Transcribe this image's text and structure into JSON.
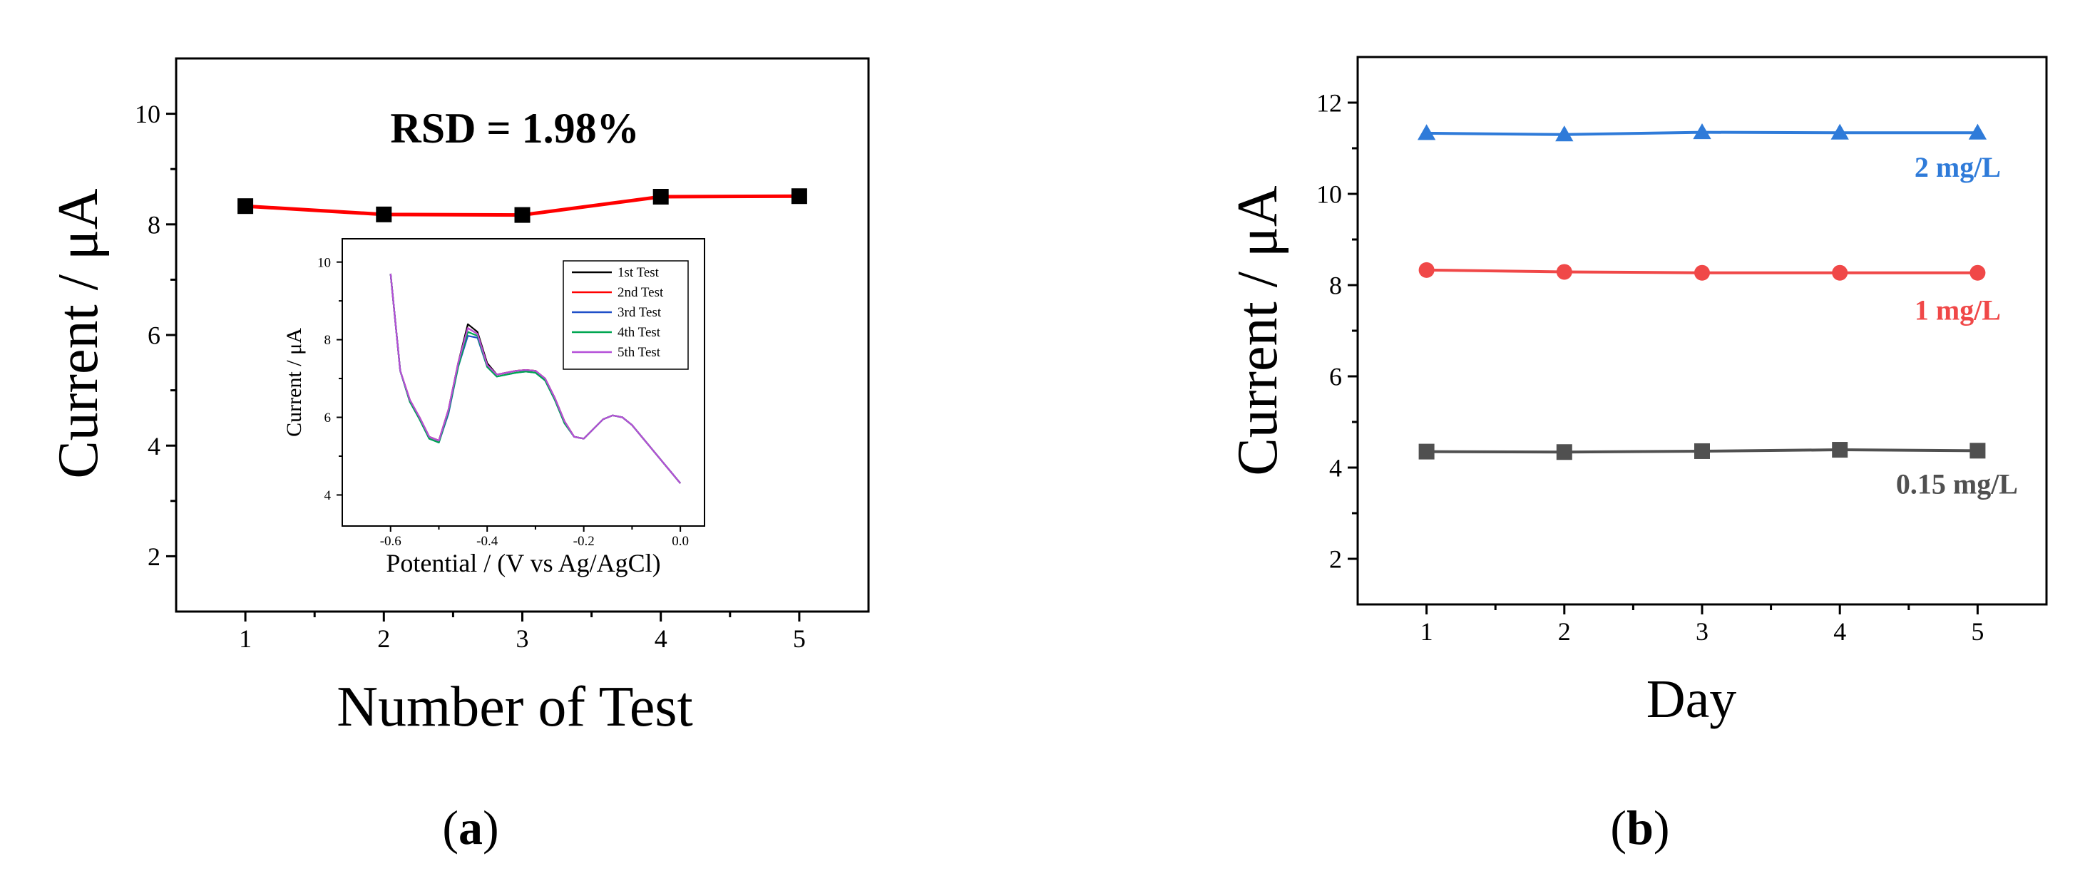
{
  "chart_data": [
    {
      "panel_label": "a",
      "type": "line",
      "xlabel": "Number of Test",
      "ylabel": "Current / μA",
      "annotation": "RSD = 1.98%",
      "xlim": [
        0.5,
        5.5
      ],
      "ylim": [
        1,
        11
      ],
      "xticks": [
        1,
        2,
        3,
        4,
        5
      ],
      "yticks": [
        2,
        4,
        6,
        8,
        10
      ],
      "x": [
        1,
        2,
        3,
        4,
        5
      ],
      "series": [
        {
          "values": [
            8.33,
            8.18,
            8.17,
            8.5,
            8.51
          ],
          "color": "#ff0000",
          "marker": "square",
          "marker_color": "#000000"
        }
      ],
      "inset": {
        "type": "line",
        "xlabel": "Potential / (V vs Ag/AgCl)",
        "ylabel": "Current / μA",
        "xlim": [
          -0.7,
          0.05
        ],
        "ylim": [
          3.2,
          10.6
        ],
        "xticks": [
          -0.6,
          -0.4,
          -0.2,
          0.0
        ],
        "xtick_labels": [
          "-0.6",
          "-0.4",
          "-0.2",
          "0.0"
        ],
        "yticks": [
          4,
          6,
          8,
          10
        ],
        "legend_position": "top-right",
        "x": [
          -0.6,
          -0.58,
          -0.56,
          -0.54,
          -0.52,
          -0.5,
          -0.48,
          -0.46,
          -0.44,
          -0.42,
          -0.4,
          -0.38,
          -0.36,
          -0.34,
          -0.32,
          -0.3,
          -0.28,
          -0.26,
          -0.24,
          -0.22,
          -0.2,
          -0.18,
          -0.16,
          -0.14,
          -0.12,
          -0.1,
          -0.08,
          -0.06,
          -0.04,
          -0.02,
          0.0
        ],
        "series": [
          {
            "name": "1st Test",
            "color": "#000000",
            "values": [
              9.7,
              7.2,
              6.4,
              6.0,
              5.5,
              5.4,
              6.2,
              7.4,
              8.4,
              8.2,
              7.4,
              7.1,
              7.15,
              7.2,
              7.22,
              7.2,
              7.0,
              6.5,
              5.9,
              5.5,
              5.45,
              5.7,
              5.95,
              6.05,
              6.0,
              5.8,
              5.5,
              5.2,
              4.9,
              4.6,
              4.3
            ]
          },
          {
            "name": "2nd Test",
            "color": "#ff0000",
            "values": [
              9.7,
              7.2,
              6.45,
              6.0,
              5.5,
              5.4,
              6.2,
              7.4,
              8.3,
              8.15,
              7.35,
              7.1,
              7.15,
              7.2,
              7.22,
              7.2,
              7.0,
              6.5,
              5.9,
              5.5,
              5.45,
              5.7,
              5.95,
              6.05,
              6.0,
              5.8,
              5.5,
              5.2,
              4.9,
              4.6,
              4.3
            ]
          },
          {
            "name": "3rd Test",
            "color": "#1f4fc8",
            "values": [
              9.7,
              7.2,
              6.4,
              5.95,
              5.45,
              5.35,
              6.1,
              7.3,
              8.1,
              8.05,
              7.3,
              7.05,
              7.1,
              7.15,
              7.18,
              7.15,
              6.95,
              6.45,
              5.85,
              5.5,
              5.45,
              5.7,
              5.95,
              6.05,
              6.0,
              5.8,
              5.5,
              5.2,
              4.9,
              4.6,
              4.3
            ]
          },
          {
            "name": "4th Test",
            "color": "#00a651",
            "values": [
              9.7,
              7.2,
              6.4,
              5.95,
              5.45,
              5.35,
              6.15,
              7.3,
              8.2,
              8.1,
              7.3,
              7.05,
              7.1,
              7.15,
              7.18,
              7.15,
              6.95,
              6.45,
              5.85,
              5.5,
              5.45,
              5.7,
              5.95,
              6.05,
              6.0,
              5.8,
              5.5,
              5.2,
              4.9,
              4.6,
              4.3
            ]
          },
          {
            "name": "5th Test",
            "color": "#b44fd8",
            "values": [
              9.7,
              7.2,
              6.45,
              6.0,
              5.5,
              5.4,
              6.2,
              7.4,
              8.3,
              8.15,
              7.35,
              7.1,
              7.15,
              7.2,
              7.22,
              7.2,
              7.0,
              6.5,
              5.9,
              5.5,
              5.45,
              5.7,
              5.95,
              6.05,
              6.0,
              5.8,
              5.5,
              5.2,
              4.9,
              4.6,
              4.3
            ]
          }
        ]
      }
    },
    {
      "panel_label": "b",
      "type": "line",
      "xlabel": "Day",
      "ylabel": "Current / μA",
      "xlim": [
        0.5,
        5.5
      ],
      "ylim": [
        1,
        13
      ],
      "xticks": [
        1,
        2,
        3,
        4,
        5
      ],
      "yticks": [
        2,
        4,
        6,
        8,
        10,
        12
      ],
      "x": [
        1,
        2,
        3,
        4,
        5
      ],
      "series": [
        {
          "name": "2 mg/L",
          "color": "#2f7bd9",
          "marker": "triangle",
          "values": [
            11.33,
            11.3,
            11.35,
            11.34,
            11.34
          ]
        },
        {
          "name": "1 mg/L",
          "color": "#f04848",
          "marker": "circle",
          "values": [
            8.33,
            8.29,
            8.27,
            8.27,
            8.27
          ]
        },
        {
          "name": "0.15 mg/L",
          "color": "#505050",
          "marker": "square",
          "values": [
            4.35,
            4.34,
            4.36,
            4.39,
            4.37
          ]
        }
      ]
    }
  ]
}
